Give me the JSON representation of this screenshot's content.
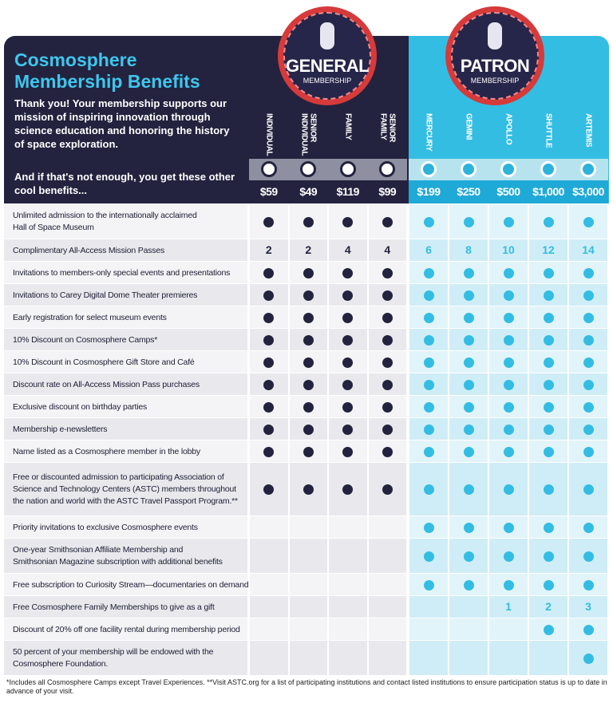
{
  "header": {
    "title": [
      "Cosmosphere",
      "Membership Benefits"
    ],
    "intro": "Thank you! Your membership supports our mission of inspiring innovation through science education and honoring the history of space exploration.",
    "more": "And if that's not enough, you get these other cool benefits..."
  },
  "groups": [
    {
      "name": "GENERAL",
      "subtitle": "MEMBERSHIP"
    },
    {
      "name": "PATRON",
      "subtitle": "MEMBERSHIP"
    }
  ],
  "tiers": [
    {
      "name": "INDIVIDUAL",
      "price": "$59",
      "group": 0
    },
    {
      "name": "SENIOR INDIVIDUAL",
      "price": "$49",
      "group": 0
    },
    {
      "name": "FAMILY",
      "price": "$119",
      "group": 0
    },
    {
      "name": "SENIOR FAMILY",
      "price": "$99",
      "group": 0
    },
    {
      "name": "MERCURY",
      "price": "$199",
      "group": 1
    },
    {
      "name": "GEMINI",
      "price": "$250",
      "group": 1
    },
    {
      "name": "APOLLO",
      "price": "$500",
      "group": 1
    },
    {
      "name": "SHUTTLE",
      "price": "$1,000",
      "group": 1
    },
    {
      "name": "ARTEMIS",
      "price": "$3,000",
      "group": 1
    }
  ],
  "rows": [
    {
      "label": [
        "Unlimited admission to the internationally acclaimed",
        "Hall of Space Museum"
      ],
      "cells": [
        true,
        true,
        true,
        true,
        true,
        true,
        true,
        true,
        true
      ]
    },
    {
      "label": [
        "Complimentary All-Access Mission Passes"
      ],
      "cells": [
        2,
        2,
        4,
        4,
        6,
        8,
        10,
        12,
        14
      ]
    },
    {
      "label": [
        "Invitations to members-only special events and presentations"
      ],
      "cells": [
        true,
        true,
        true,
        true,
        true,
        true,
        true,
        true,
        true
      ]
    },
    {
      "label": [
        "Invitations to Carey Digital Dome Theater premieres"
      ],
      "cells": [
        true,
        true,
        true,
        true,
        true,
        true,
        true,
        true,
        true
      ]
    },
    {
      "label": [
        "Early registration for select museum events"
      ],
      "cells": [
        true,
        true,
        true,
        true,
        true,
        true,
        true,
        true,
        true
      ]
    },
    {
      "label": [
        "10% Discount on Cosmosphere Camps*"
      ],
      "cells": [
        true,
        true,
        true,
        true,
        true,
        true,
        true,
        true,
        true
      ]
    },
    {
      "label": [
        "10% Discount in Cosmosphere Gift Store and Café"
      ],
      "cells": [
        true,
        true,
        true,
        true,
        true,
        true,
        true,
        true,
        true
      ]
    },
    {
      "label": [
        "Discount rate on All-Access Mission Pass purchases"
      ],
      "cells": [
        true,
        true,
        true,
        true,
        true,
        true,
        true,
        true,
        true
      ]
    },
    {
      "label": [
        "Exclusive discount on birthday parties"
      ],
      "cells": [
        true,
        true,
        true,
        true,
        true,
        true,
        true,
        true,
        true
      ]
    },
    {
      "label": [
        "Membership e-newsletters"
      ],
      "cells": [
        true,
        true,
        true,
        true,
        true,
        true,
        true,
        true,
        true
      ]
    },
    {
      "label": [
        "Name listed as a Cosmosphere member in the lobby"
      ],
      "cells": [
        true,
        true,
        true,
        true,
        true,
        true,
        true,
        true,
        true
      ]
    },
    {
      "label": [
        "Free or discounted admission to participating Association of",
        "Science and Technology Centers (ASTC) members throughout",
        "the nation and world with the ASTC Travel Passport Program.**"
      ],
      "cells": [
        true,
        true,
        true,
        true,
        true,
        true,
        true,
        true,
        true
      ]
    },
    {
      "label": [
        "Priority invitations to exclusive Cosmosphere events"
      ],
      "cells": [
        false,
        false,
        false,
        false,
        true,
        true,
        true,
        true,
        true
      ]
    },
    {
      "label": [
        "One-year Smithsonian Affiliate Membership and",
        "Smithsonian Magazine subscription with additional benefits"
      ],
      "cells": [
        false,
        false,
        false,
        false,
        true,
        true,
        true,
        true,
        true
      ]
    },
    {
      "label": [
        "Free subscription to Curiosity Stream—documentaries on demand"
      ],
      "cells": [
        false,
        false,
        false,
        false,
        true,
        true,
        true,
        true,
        true
      ]
    },
    {
      "label": [
        "Free Cosmosphere Family Memberships to give as a gift"
      ],
      "cells": [
        false,
        false,
        false,
        false,
        false,
        false,
        1,
        2,
        3
      ]
    },
    {
      "label": [
        "Discount of 20% off one facility rental during membership period"
      ],
      "cells": [
        false,
        false,
        false,
        false,
        false,
        false,
        false,
        true,
        true
      ]
    },
    {
      "label": [
        "50 percent of your membership will be endowed with the",
        "Cosmosphere Foundation."
      ],
      "cells": [
        false,
        false,
        false,
        false,
        false,
        false,
        false,
        false,
        true
      ]
    }
  ],
  "footnote": "*Includes all Cosmosphere Camps except Travel Experiences. **Visit ASTC.org for a list of participating institutions and contact listed institutions to ensure participation status is up to date in advance of your visit."
}
